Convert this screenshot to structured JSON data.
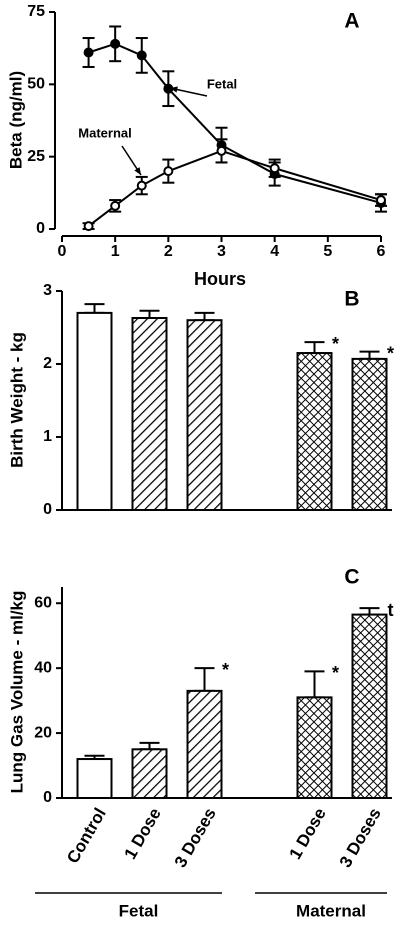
{
  "chart_data": [
    {
      "type": "line",
      "panel_label": "A",
      "x_label": "Hours",
      "y_label": "Beta (ng/ml)",
      "xlim": [
        0,
        6
      ],
      "xticks": [
        0,
        1,
        2,
        3,
        4,
        5,
        6
      ],
      "ylim": [
        0,
        75
      ],
      "yticks": [
        0,
        25,
        50,
        75
      ],
      "x": [
        0.5,
        1,
        1.5,
        2,
        3,
        4,
        6
      ],
      "series": [
        {
          "name": "Fetal",
          "color": "#000000",
          "marker": "filled",
          "values": [
            61,
            64,
            60,
            48.5,
            29,
            19,
            9
          ],
          "errors": [
            5,
            6,
            6,
            6,
            6,
            4,
            3
          ]
        },
        {
          "name": "Maternal",
          "color": "#000000",
          "marker": "open",
          "values": [
            1,
            8,
            15,
            20,
            27,
            21,
            10
          ],
          "errors": [
            1,
            2,
            3,
            4,
            4,
            3,
            2
          ]
        }
      ],
      "annotations": [
        "Fetal",
        "Maternal"
      ]
    },
    {
      "type": "bar",
      "panel_label": "B",
      "y_label": "Birth Weight - kg",
      "ylim": [
        0,
        3
      ],
      "yticks": [
        0,
        1,
        2,
        3
      ],
      "categories": [
        null,
        null,
        null,
        null,
        null,
        null
      ],
      "values": [
        2.7,
        2.63,
        2.6,
        null,
        2.15,
        2.07
      ],
      "errors": [
        0.12,
        0.1,
        0.1,
        null,
        0.15,
        0.1
      ],
      "patterns": [
        "plain",
        "hatch",
        "hatch",
        null,
        "crosshatch",
        "crosshatch"
      ],
      "marks": [
        null,
        null,
        null,
        null,
        "*",
        "*"
      ]
    },
    {
      "type": "bar",
      "panel_label": "C",
      "y_label": "Lung Gas Volume -  ml/kg",
      "ylim": [
        0,
        65
      ],
      "yticks": [
        0,
        20,
        40,
        60
      ],
      "categories": [
        "Control",
        "1 Dose",
        "3 Doses",
        null,
        "1 Dose",
        "3 Doses"
      ],
      "values": [
        12,
        15,
        33,
        null,
        31,
        56.5
      ],
      "errors": [
        1,
        2,
        7,
        null,
        8,
        2
      ],
      "patterns": [
        "plain",
        "hatch",
        "hatch",
        null,
        "crosshatch",
        "crosshatch"
      ],
      "marks": [
        null,
        null,
        "*",
        null,
        "*",
        "t"
      ],
      "groups": [
        "Fetal",
        "Maternal"
      ]
    }
  ]
}
